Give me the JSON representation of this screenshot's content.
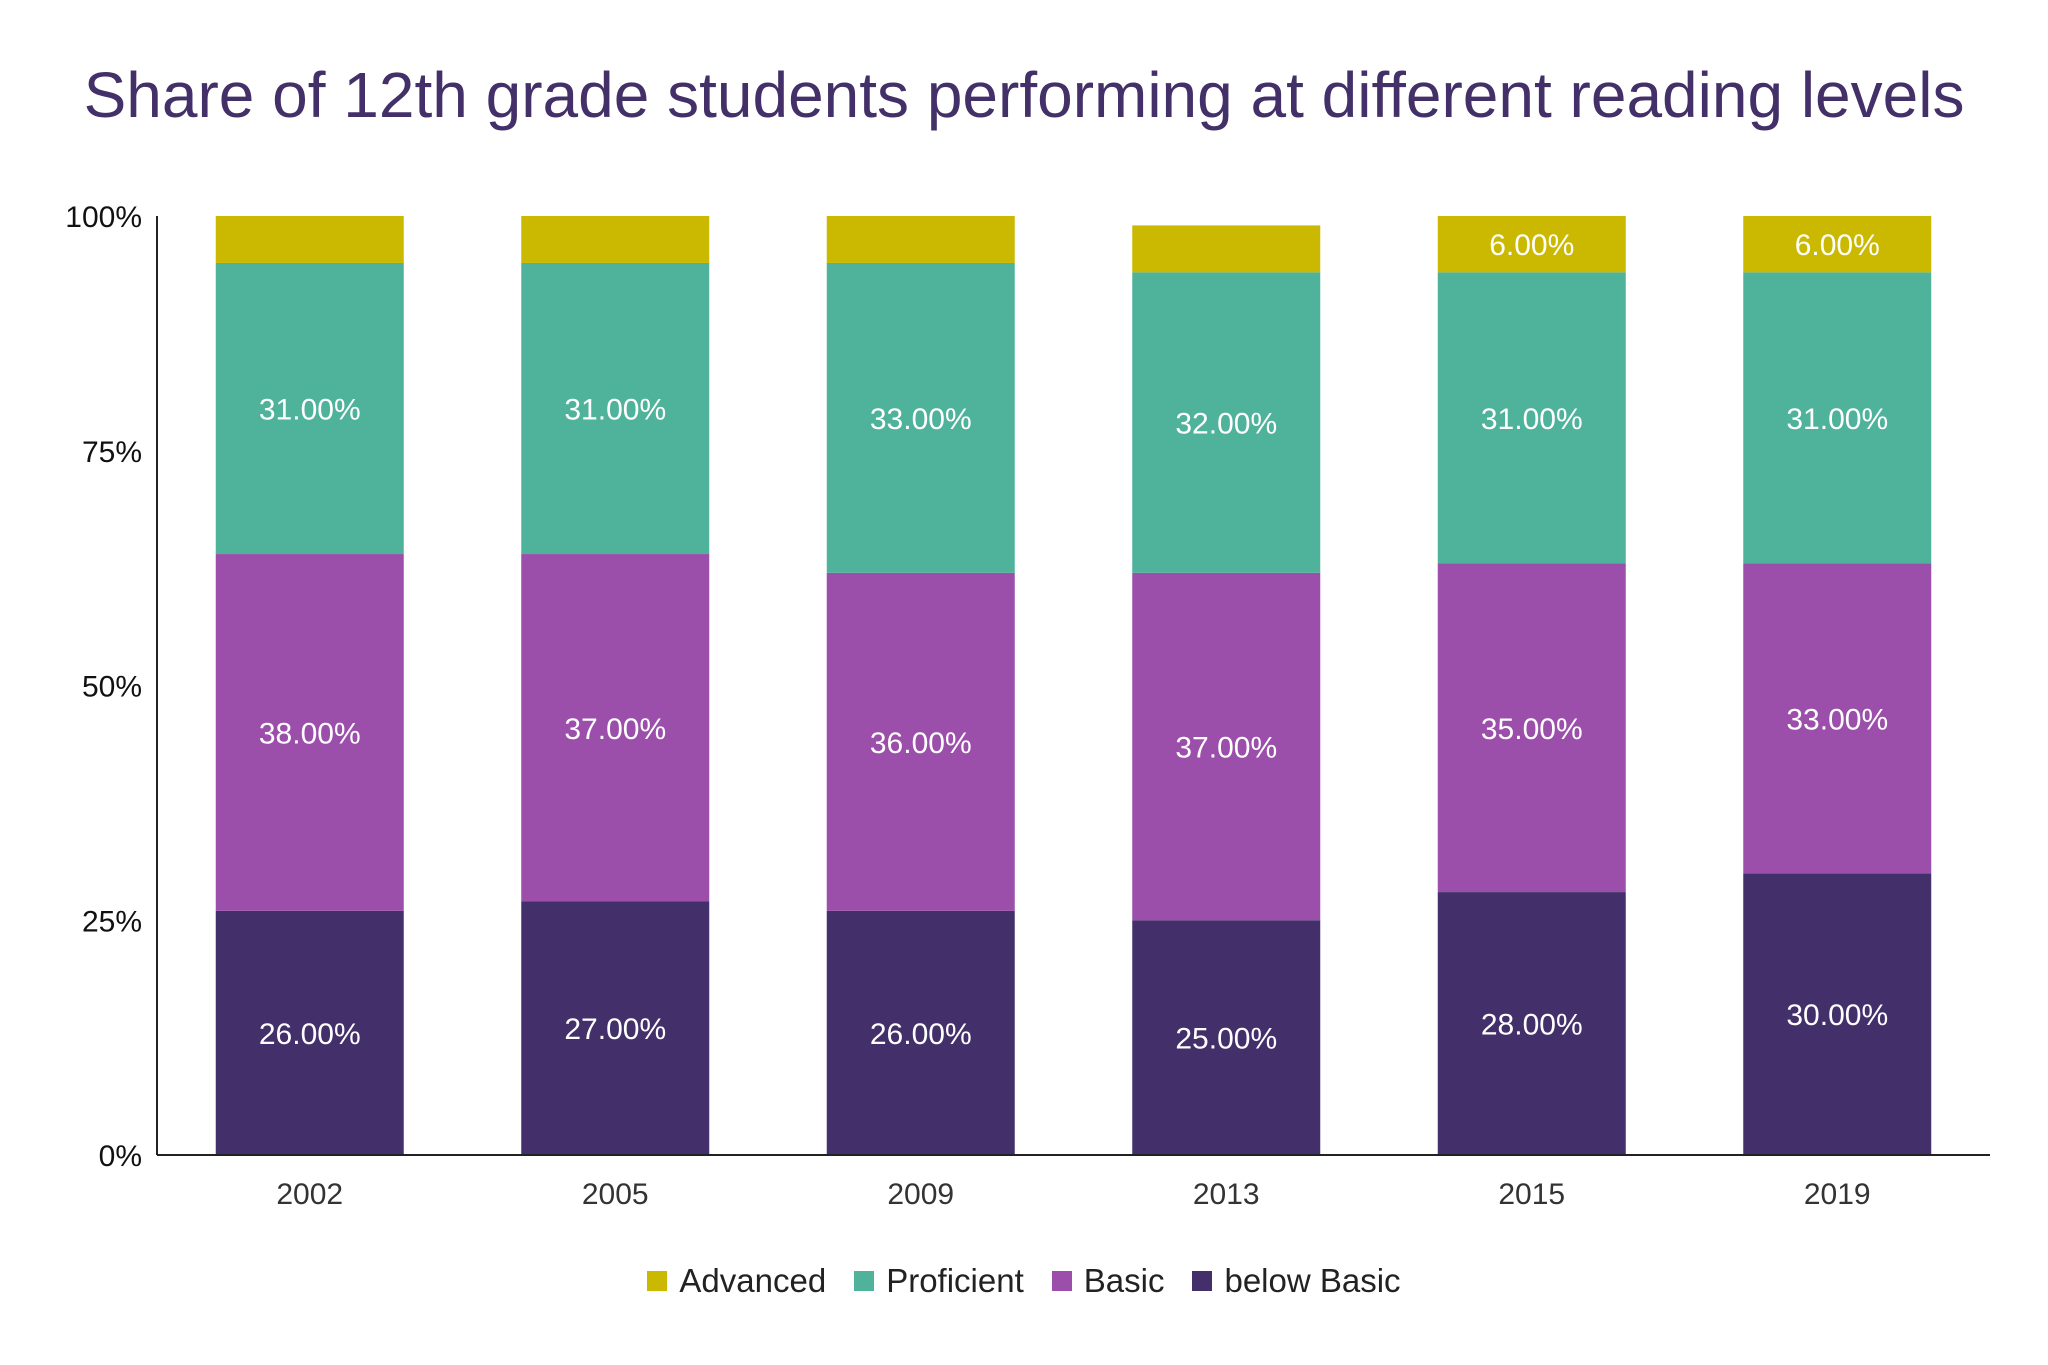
{
  "chart_data": {
    "type": "bar",
    "stacked": true,
    "title": "Share of 12th grade students performing at different reading levels",
    "xlabel": "",
    "ylabel": "",
    "ylim": [
      0,
      100
    ],
    "yticks": [
      "0%",
      "25%",
      "50%",
      "75%",
      "100%"
    ],
    "grid": false,
    "legend_position": "bottom",
    "categories": [
      "2002",
      "2005",
      "2009",
      "2013",
      "2015",
      "2019"
    ],
    "series": [
      {
        "name": "below Basic",
        "color": "#43306b",
        "values": [
          26,
          27,
          26,
          25,
          28,
          30
        ],
        "labels": [
          "26.00%",
          "27.00%",
          "26.00%",
          "25.00%",
          "28.00%",
          "30.00%"
        ]
      },
      {
        "name": "Basic",
        "color": "#9b4faa",
        "values": [
          38,
          37,
          36,
          37,
          35,
          33
        ],
        "labels": [
          "38.00%",
          "37.00%",
          "36.00%",
          "37.00%",
          "35.00%",
          "33.00%"
        ]
      },
      {
        "name": "Proficient",
        "color": "#4fb29b",
        "values": [
          31,
          31,
          33,
          32,
          31,
          31
        ],
        "labels": [
          "31.00%",
          "31.00%",
          "33.00%",
          "32.00%",
          "31.00%",
          "31.00%"
        ]
      },
      {
        "name": "Advanced",
        "color": "#cbb800",
        "values": [
          5,
          5,
          5,
          5,
          6,
          6
        ],
        "labels": [
          "",
          "",
          "",
          "",
          "6.00%",
          "6.00%"
        ]
      }
    ]
  },
  "legend": {
    "items": [
      {
        "label": "Advanced",
        "color": "#cbb800"
      },
      {
        "label": "Proficient",
        "color": "#4fb29b"
      },
      {
        "label": "Basic",
        "color": "#9b4faa"
      },
      {
        "label": "below Basic",
        "color": "#43306b"
      }
    ]
  }
}
